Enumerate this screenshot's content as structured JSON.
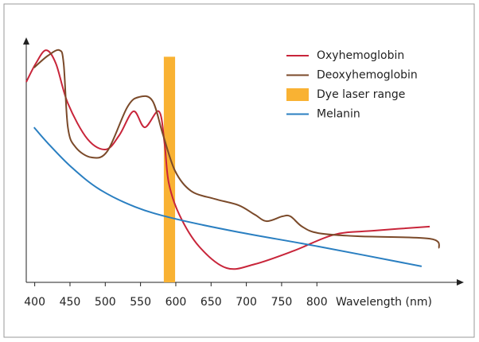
{
  "chart_data": {
    "type": "line",
    "xlabel": "Wavelength (nm)",
    "xlim": [
      388,
      1005
    ],
    "ylim": [
      0,
      100
    ],
    "xticks": [
      400,
      450,
      500,
      550,
      600,
      650,
      700,
      750,
      800
    ],
    "legend": "upper right",
    "band": {
      "name": "Dye laser range",
      "color": "#f9b233",
      "x": [
        583,
        599
      ],
      "top": 93
    },
    "series": [
      {
        "name": "Oxyhemoglobin",
        "color": "#c8253a",
        "x": [
          388,
          401.5,
          416,
          430,
          447,
          475,
          501,
          520,
          540,
          556,
          576,
          584,
          590,
          605,
          633,
          672,
          712,
          768,
          825,
          881,
          960
        ],
        "values": [
          82.6,
          90.2,
          95.7,
          90.2,
          73.8,
          59,
          54.8,
          60.7,
          70.5,
          63.9,
          70.5,
          57.4,
          41,
          27.9,
          14.8,
          5.9,
          7.5,
          13.1,
          19.7,
          21.3,
          23
        ]
      },
      {
        "name": "Deoxyhemoglobin",
        "color": "#7b4a2a",
        "x": [
          399,
          418.5,
          435,
          441,
          447,
          458,
          480.5,
          503,
          531,
          548,
          567,
          582,
          599,
          621.5,
          655,
          689,
          712,
          729,
          751,
          762.5,
          779,
          802,
          858,
          960,
          973.5
        ],
        "values": [
          88.5,
          93.4,
          95.7,
          90.2,
          63.9,
          55.7,
          51.5,
          54.1,
          72.1,
          76.4,
          74.8,
          60.7,
          45.9,
          37.7,
          34.4,
          31.8,
          27.9,
          25.2,
          27.2,
          27.2,
          23,
          20.3,
          19,
          18,
          14.1
        ]
      },
      {
        "name": "Melanin",
        "color": "#2a7fc1",
        "x": [
          399,
          418.5,
          452,
          491.5,
          542.5,
          599,
          689,
          802,
          948.5
        ],
        "values": [
          63.9,
          57.4,
          47.5,
          38.4,
          31.1,
          26.2,
          20.7,
          14.8,
          6.6
        ]
      }
    ]
  }
}
